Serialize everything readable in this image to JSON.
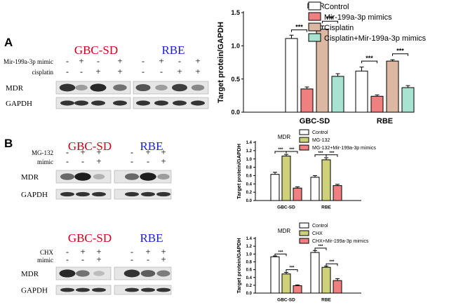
{
  "panel_labels": {
    "a": "A",
    "b": "B"
  },
  "blots": {
    "top": {
      "headings": [
        "GBC-SD",
        "RBE"
      ],
      "rows": [
        {
          "label": "Mir-199a-3p mimic",
          "signs": [
            "-",
            "+",
            "-",
            "+",
            "-",
            "+",
            "-",
            "+"
          ]
        },
        {
          "label": "cisplatin",
          "signs": [
            "-",
            "-",
            "+",
            "+",
            "-",
            "-",
            "+",
            "+"
          ]
        }
      ],
      "bands": [
        "MDR",
        "GAPDH"
      ],
      "mdr_intensity": [
        0.85,
        0.35,
        0.9,
        0.55,
        0.7,
        0.35,
        0.8,
        0.45
      ]
    },
    "mid": {
      "headings": [
        "GBC-SD",
        "RBE"
      ],
      "rows": [
        {
          "label": "MG-132",
          "signs": [
            "-",
            "+",
            "+",
            "-",
            "+",
            "+"
          ]
        },
        {
          "label": "mimic",
          "signs": [
            "-",
            "-",
            "+",
            "-",
            "-",
            "+"
          ]
        }
      ],
      "bands": [
        "MDR",
        "GAPDH"
      ],
      "mdr_intensity": [
        0.6,
        0.95,
        0.25,
        0.6,
        0.95,
        0.35
      ]
    },
    "bot": {
      "headings": [
        "GBC-SD",
        "RBE"
      ],
      "rows": [
        {
          "label": "CHX",
          "signs": [
            "-",
            "+",
            "+",
            "-",
            "+",
            "+"
          ]
        },
        {
          "label": "mimic",
          "signs": [
            "-",
            "-",
            "+",
            "-",
            "-",
            "+"
          ]
        }
      ],
      "bands": [
        "MDR",
        "GAPDH"
      ],
      "mdr_intensity": [
        0.9,
        0.55,
        0.2,
        0.85,
        0.65,
        0.5
      ]
    }
  },
  "colors": {
    "heading_red": "#d0021b",
    "heading_blue": "#1a1fd6"
  },
  "chart_data": [
    {
      "type": "bar",
      "title": "MDR",
      "ylabel": "Target protein/GAPDH",
      "categories": [
        "GBC-SD",
        "RBE"
      ],
      "ylim": [
        0,
        1.5
      ],
      "yticks": [
        "0.0",
        "0.5",
        "1.0",
        "1.5"
      ],
      "series": [
        {
          "name": "Control",
          "values": [
            1.11,
            0.62
          ],
          "errors": [
            0.05,
            0.06
          ],
          "color": "#ffffff"
        },
        {
          "name": "Mir-199a-3p mimics",
          "values": [
            0.35,
            0.24
          ],
          "errors": [
            0.03,
            0.02
          ],
          "color": "#f08080"
        },
        {
          "name": "Cisplatin",
          "values": [
            1.25,
            0.77
          ],
          "errors": [
            0.05,
            0.02
          ],
          "color": "#dcb8a2"
        },
        {
          "name": "Cisplatin+Mir-199a-3p mimics",
          "values": [
            0.54,
            0.37
          ],
          "errors": [
            0.04,
            0.03
          ],
          "color": "#a8e2d0"
        }
      ],
      "sig": [
        {
          "cat": 0,
          "from": 0,
          "to": 1,
          "y": 1.24,
          "label": "***"
        },
        {
          "cat": 0,
          "from": 2,
          "to": 3,
          "y": 1.37,
          "label": "***"
        },
        {
          "cat": 1,
          "from": 0,
          "to": 1,
          "y": 0.77,
          "label": "***"
        },
        {
          "cat": 1,
          "from": 2,
          "to": 3,
          "y": 0.88,
          "label": "***"
        }
      ]
    },
    {
      "type": "bar",
      "title": "MDR",
      "ylabel": "Target protein/GAPDH",
      "categories": [
        "GBC-SD",
        "RBE"
      ],
      "ylim": [
        0,
        1.4
      ],
      "yticks": [
        "0.0",
        "0.2",
        "0.4",
        "0.6",
        "0.8",
        "1.0",
        "1.2",
        "1.4"
      ],
      "series": [
        {
          "name": "Control",
          "values": [
            0.63,
            0.56
          ],
          "errors": [
            0.05,
            0.04
          ],
          "color": "#ffffff"
        },
        {
          "name": "MG-132",
          "values": [
            1.07,
            0.98
          ],
          "errors": [
            0.04,
            0.05
          ],
          "color": "#cfd07a"
        },
        {
          "name": "MG-132+Mir-199a-3p mimics",
          "values": [
            0.3,
            0.36
          ],
          "errors": [
            0.03,
            0.03
          ],
          "color": "#f08080"
        }
      ],
      "sig": [
        {
          "cat": 0,
          "from": 0,
          "to": 1,
          "y": 1.18,
          "label": "***"
        },
        {
          "cat": 0,
          "from": 1,
          "to": 2,
          "y": 1.18,
          "label": "***"
        },
        {
          "cat": 1,
          "from": 0,
          "to": 1,
          "y": 1.1,
          "label": "***"
        },
        {
          "cat": 1,
          "from": 1,
          "to": 2,
          "y": 1.1,
          "label": "***"
        }
      ]
    },
    {
      "type": "bar",
      "title": "MDR",
      "ylabel": "Target protein/GAPDH",
      "categories": [
        "GBC-SD",
        "RBE"
      ],
      "ylim": [
        0,
        1.4
      ],
      "yticks": [
        "0.0",
        "0.2",
        "0.4",
        "0.6",
        "0.8",
        "1.0",
        "1.2",
        "1.4"
      ],
      "series": [
        {
          "name": "Control",
          "values": [
            0.93,
            1.04
          ],
          "errors": [
            0.02,
            0.05
          ],
          "color": "#ffffff"
        },
        {
          "name": "CHX",
          "values": [
            0.49,
            0.66
          ],
          "errors": [
            0.04,
            0.03
          ],
          "color": "#cfd07a"
        },
        {
          "name": "CHX+Mir-199a-3p mimics",
          "values": [
            0.19,
            0.32
          ],
          "errors": [
            0.02,
            0.05
          ],
          "color": "#f08080"
        }
      ],
      "sig": [
        {
          "cat": 0,
          "from": 0,
          "to": 1,
          "y": 1.0,
          "label": "***"
        },
        {
          "cat": 0,
          "from": 1,
          "to": 2,
          "y": 0.6,
          "label": "***"
        },
        {
          "cat": 1,
          "from": 0,
          "to": 1,
          "y": 1.15,
          "label": "***"
        },
        {
          "cat": 1,
          "from": 1,
          "to": 2,
          "y": 0.75,
          "label": "***"
        }
      ]
    }
  ]
}
